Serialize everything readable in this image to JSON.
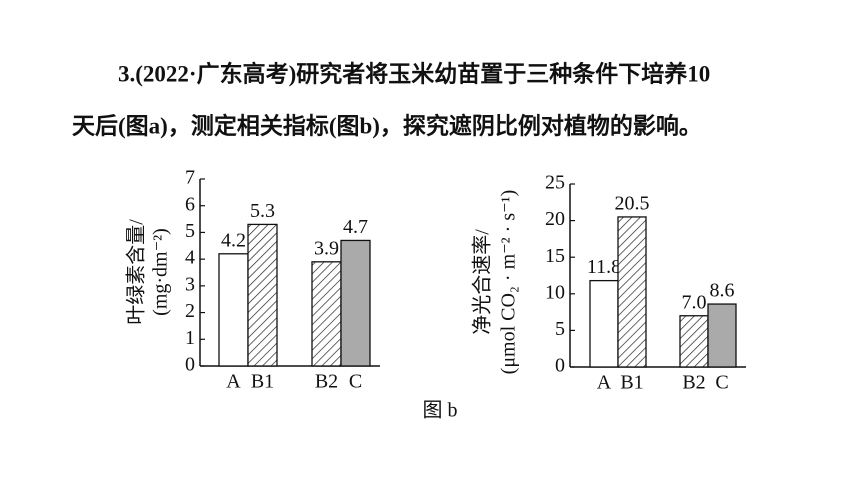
{
  "question_lines": [
    "3.(2022·广东高考)研究者将玉米幼苗置于三种条件下培养10",
    "天后(图a)，测定相关指标(图b)，探究遮阴比例对植物的影响。"
  ],
  "caption": "图 b",
  "chart_data": [
    {
      "type": "bar",
      "y_label_lines": [
        "叶绿素含量/",
        "(mg·dm⁻²)"
      ],
      "categories": [
        "A",
        "B1",
        "B2",
        "C"
      ],
      "values": [
        4.2,
        5.3,
        3.9,
        4.7
      ],
      "fills": [
        "#ffffff",
        "hatch",
        "hatch",
        "#aaaaaa"
      ],
      "ylim": [
        0,
        7
      ],
      "yticks": [
        0,
        1,
        2,
        3,
        4,
        5,
        6,
        7
      ]
    },
    {
      "type": "bar",
      "y_label_lines": [
        "净光合速率/",
        "(μmol CO₂ · m⁻² · s⁻¹)"
      ],
      "categories": [
        "A",
        "B1",
        "B2",
        "C"
      ],
      "values": [
        11.8,
        20.5,
        7.0,
        8.6
      ],
      "value_labels": [
        "11.8",
        "20.5",
        "7.0",
        "8.6"
      ],
      "fills": [
        "#ffffff",
        "hatch",
        "hatch",
        "#aaaaaa"
      ],
      "ylim": [
        0,
        25
      ],
      "yticks": [
        0,
        5,
        10,
        15,
        20,
        25
      ]
    }
  ]
}
